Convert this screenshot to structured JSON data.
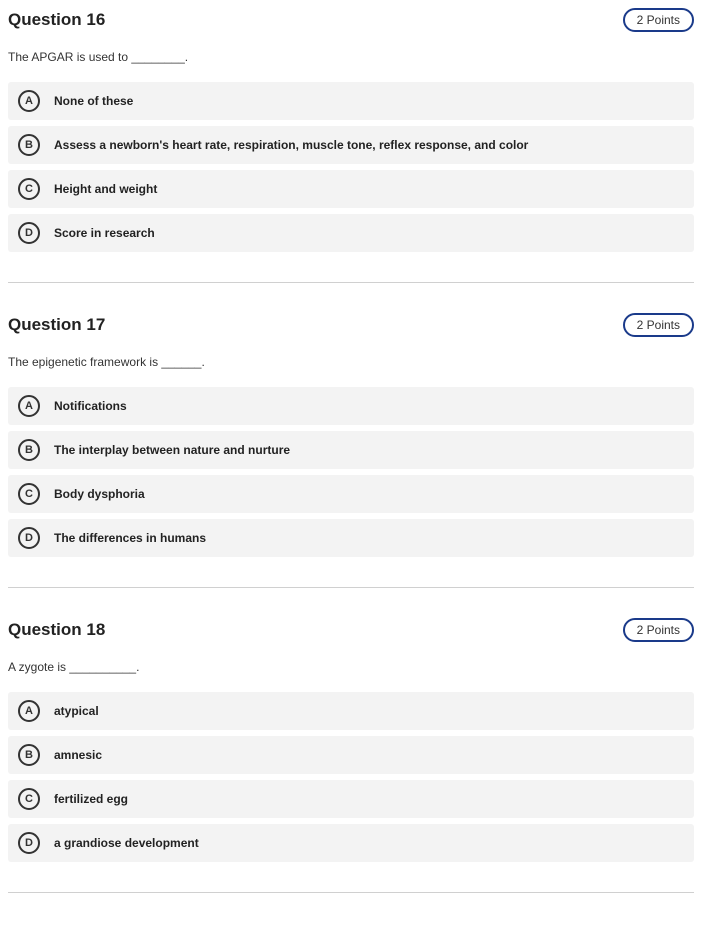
{
  "questions": [
    {
      "number": "Question 16",
      "points": "2 Points",
      "text": "The APGAR is used to ________.",
      "options": [
        {
          "letter": "A",
          "text": "None of these"
        },
        {
          "letter": "B",
          "text": "Assess a newborn's heart rate, respiration, muscle tone, reflex response, and color"
        },
        {
          "letter": "C",
          "text": "Height and weight"
        },
        {
          "letter": "D",
          "text": "Score in research"
        }
      ]
    },
    {
      "number": "Question 17",
      "points": "2 Points",
      "text": "The epigenetic framework is ______.",
      "options": [
        {
          "letter": "A",
          "text": "Notifications"
        },
        {
          "letter": "B",
          "text": "The interplay between nature and nurture"
        },
        {
          "letter": "C",
          "text": "Body dysphoria"
        },
        {
          "letter": "D",
          "text": "The differences in humans"
        }
      ]
    },
    {
      "number": "Question 18",
      "points": "2 Points",
      "text": "A zygote is __________.",
      "options": [
        {
          "letter": "A",
          "text": "atypical"
        },
        {
          "letter": "B",
          "text": "amnesic"
        },
        {
          "letter": "C",
          "text": "fertilized egg"
        },
        {
          "letter": "D",
          "text": "a grandiose development"
        }
      ]
    }
  ]
}
